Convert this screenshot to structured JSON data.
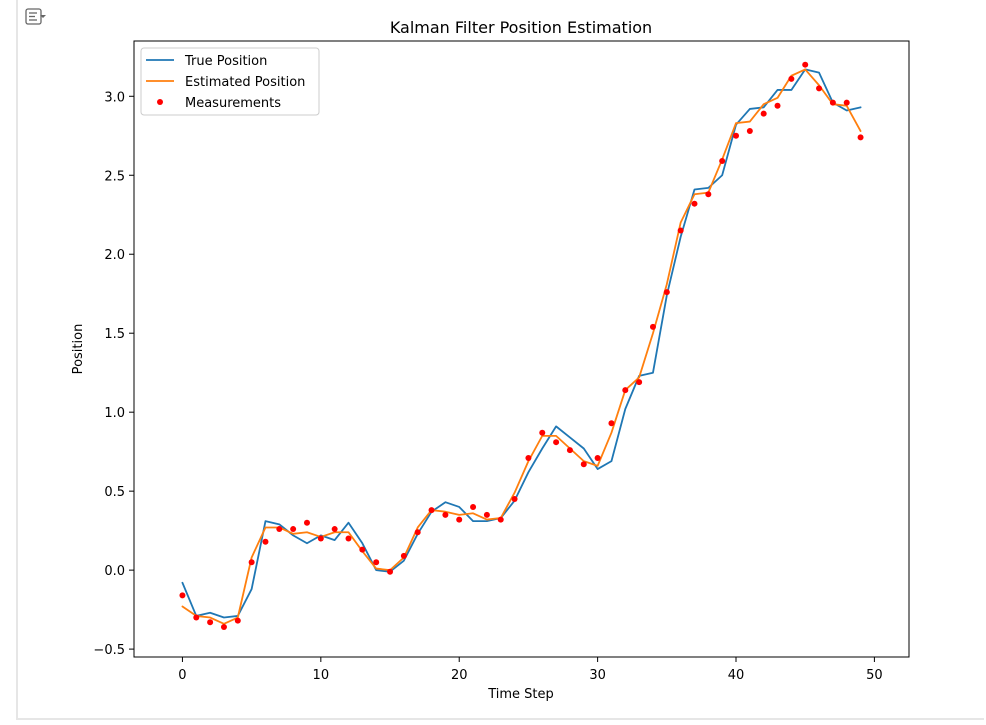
{
  "output_toolbar": {
    "toggle_icon": "output-collapse-icon"
  },
  "chart_data": {
    "type": "line",
    "title": "Kalman Filter Position Estimation",
    "xlabel": "Time Step",
    "ylabel": "Position",
    "xlim": [
      -3.5,
      52.5
    ],
    "ylim": [
      -0.55,
      3.35
    ],
    "xticks": [
      0,
      10,
      20,
      30,
      40,
      50
    ],
    "yticks": [
      -0.5,
      0.0,
      0.5,
      1.0,
      1.5,
      2.0,
      2.5,
      3.0
    ],
    "xtick_labels": [
      "0",
      "10",
      "20",
      "30",
      "40",
      "50"
    ],
    "ytick_labels": [
      "−0.5",
      "0.0",
      "0.5",
      "1.0",
      "1.5",
      "2.0",
      "2.5",
      "3.0"
    ],
    "grid": false,
    "legend_position": "top-left",
    "series": [
      {
        "name": "True Position",
        "kind": "line",
        "color": "#1f77b4",
        "x": [
          0,
          1,
          2,
          3,
          4,
          5,
          6,
          7,
          8,
          9,
          10,
          11,
          12,
          13,
          14,
          15,
          16,
          17,
          18,
          19,
          20,
          21,
          22,
          23,
          24,
          25,
          26,
          27,
          28,
          29,
          30,
          31,
          32,
          33,
          34,
          35,
          36,
          37,
          38,
          39,
          40,
          41,
          42,
          43,
          44,
          45,
          46,
          47,
          48,
          49
        ],
        "y": [
          -0.08,
          -0.29,
          -0.27,
          -0.3,
          -0.29,
          -0.12,
          0.31,
          0.29,
          0.22,
          0.17,
          0.22,
          0.19,
          0.3,
          0.17,
          0.0,
          -0.01,
          0.06,
          0.23,
          0.37,
          0.43,
          0.4,
          0.31,
          0.31,
          0.33,
          0.44,
          0.62,
          0.77,
          0.91,
          0.84,
          0.77,
          0.64,
          0.69,
          1.02,
          1.23,
          1.25,
          1.74,
          2.11,
          2.41,
          2.42,
          2.5,
          2.82,
          2.92,
          2.93,
          3.04,
          3.04,
          3.17,
          3.15,
          2.96,
          2.91,
          2.93
        ]
      },
      {
        "name": "Estimated Position",
        "kind": "line",
        "color": "#ff7f0e",
        "x": [
          0,
          1,
          2,
          3,
          4,
          5,
          6,
          7,
          8,
          9,
          10,
          11,
          12,
          13,
          14,
          15,
          16,
          17,
          18,
          19,
          20,
          21,
          22,
          23,
          24,
          25,
          26,
          27,
          28,
          29,
          30,
          31,
          32,
          33,
          34,
          35,
          36,
          37,
          38,
          39,
          40,
          41,
          42,
          43,
          44,
          45,
          46,
          47,
          48,
          49
        ],
        "y": [
          -0.23,
          -0.29,
          -0.3,
          -0.34,
          -0.3,
          0.08,
          0.27,
          0.27,
          0.23,
          0.24,
          0.21,
          0.24,
          0.24,
          0.12,
          0.01,
          -0.0,
          0.08,
          0.27,
          0.38,
          0.37,
          0.35,
          0.36,
          0.32,
          0.33,
          0.49,
          0.69,
          0.85,
          0.85,
          0.77,
          0.69,
          0.66,
          0.87,
          1.14,
          1.22,
          1.5,
          1.81,
          2.2,
          2.38,
          2.39,
          2.6,
          2.83,
          2.84,
          2.95,
          2.99,
          3.13,
          3.17,
          3.07,
          2.95,
          2.94,
          2.78
        ]
      },
      {
        "name": "Measurements",
        "kind": "scatter",
        "color": "#ff0000",
        "x": [
          0,
          1,
          2,
          3,
          4,
          5,
          6,
          7,
          8,
          9,
          10,
          11,
          12,
          13,
          14,
          15,
          16,
          17,
          18,
          19,
          20,
          21,
          22,
          23,
          24,
          25,
          26,
          27,
          28,
          29,
          30,
          31,
          32,
          33,
          34,
          35,
          36,
          37,
          38,
          39,
          40,
          41,
          42,
          43,
          44,
          45,
          46,
          47,
          48,
          49
        ],
        "y": [
          -0.16,
          -0.3,
          -0.33,
          -0.36,
          -0.32,
          0.05,
          0.18,
          0.26,
          0.26,
          0.3,
          0.2,
          0.26,
          0.2,
          0.13,
          0.05,
          -0.01,
          0.09,
          0.24,
          0.38,
          0.35,
          0.32,
          0.4,
          0.35,
          0.32,
          0.45,
          0.71,
          0.87,
          0.81,
          0.76,
          0.67,
          0.71,
          0.93,
          1.14,
          1.19,
          1.54,
          1.76,
          2.15,
          2.32,
          2.38,
          2.59,
          2.75,
          2.78,
          2.89,
          2.94,
          3.11,
          3.2,
          3.05,
          2.96,
          2.96,
          2.74
        ]
      }
    ]
  }
}
